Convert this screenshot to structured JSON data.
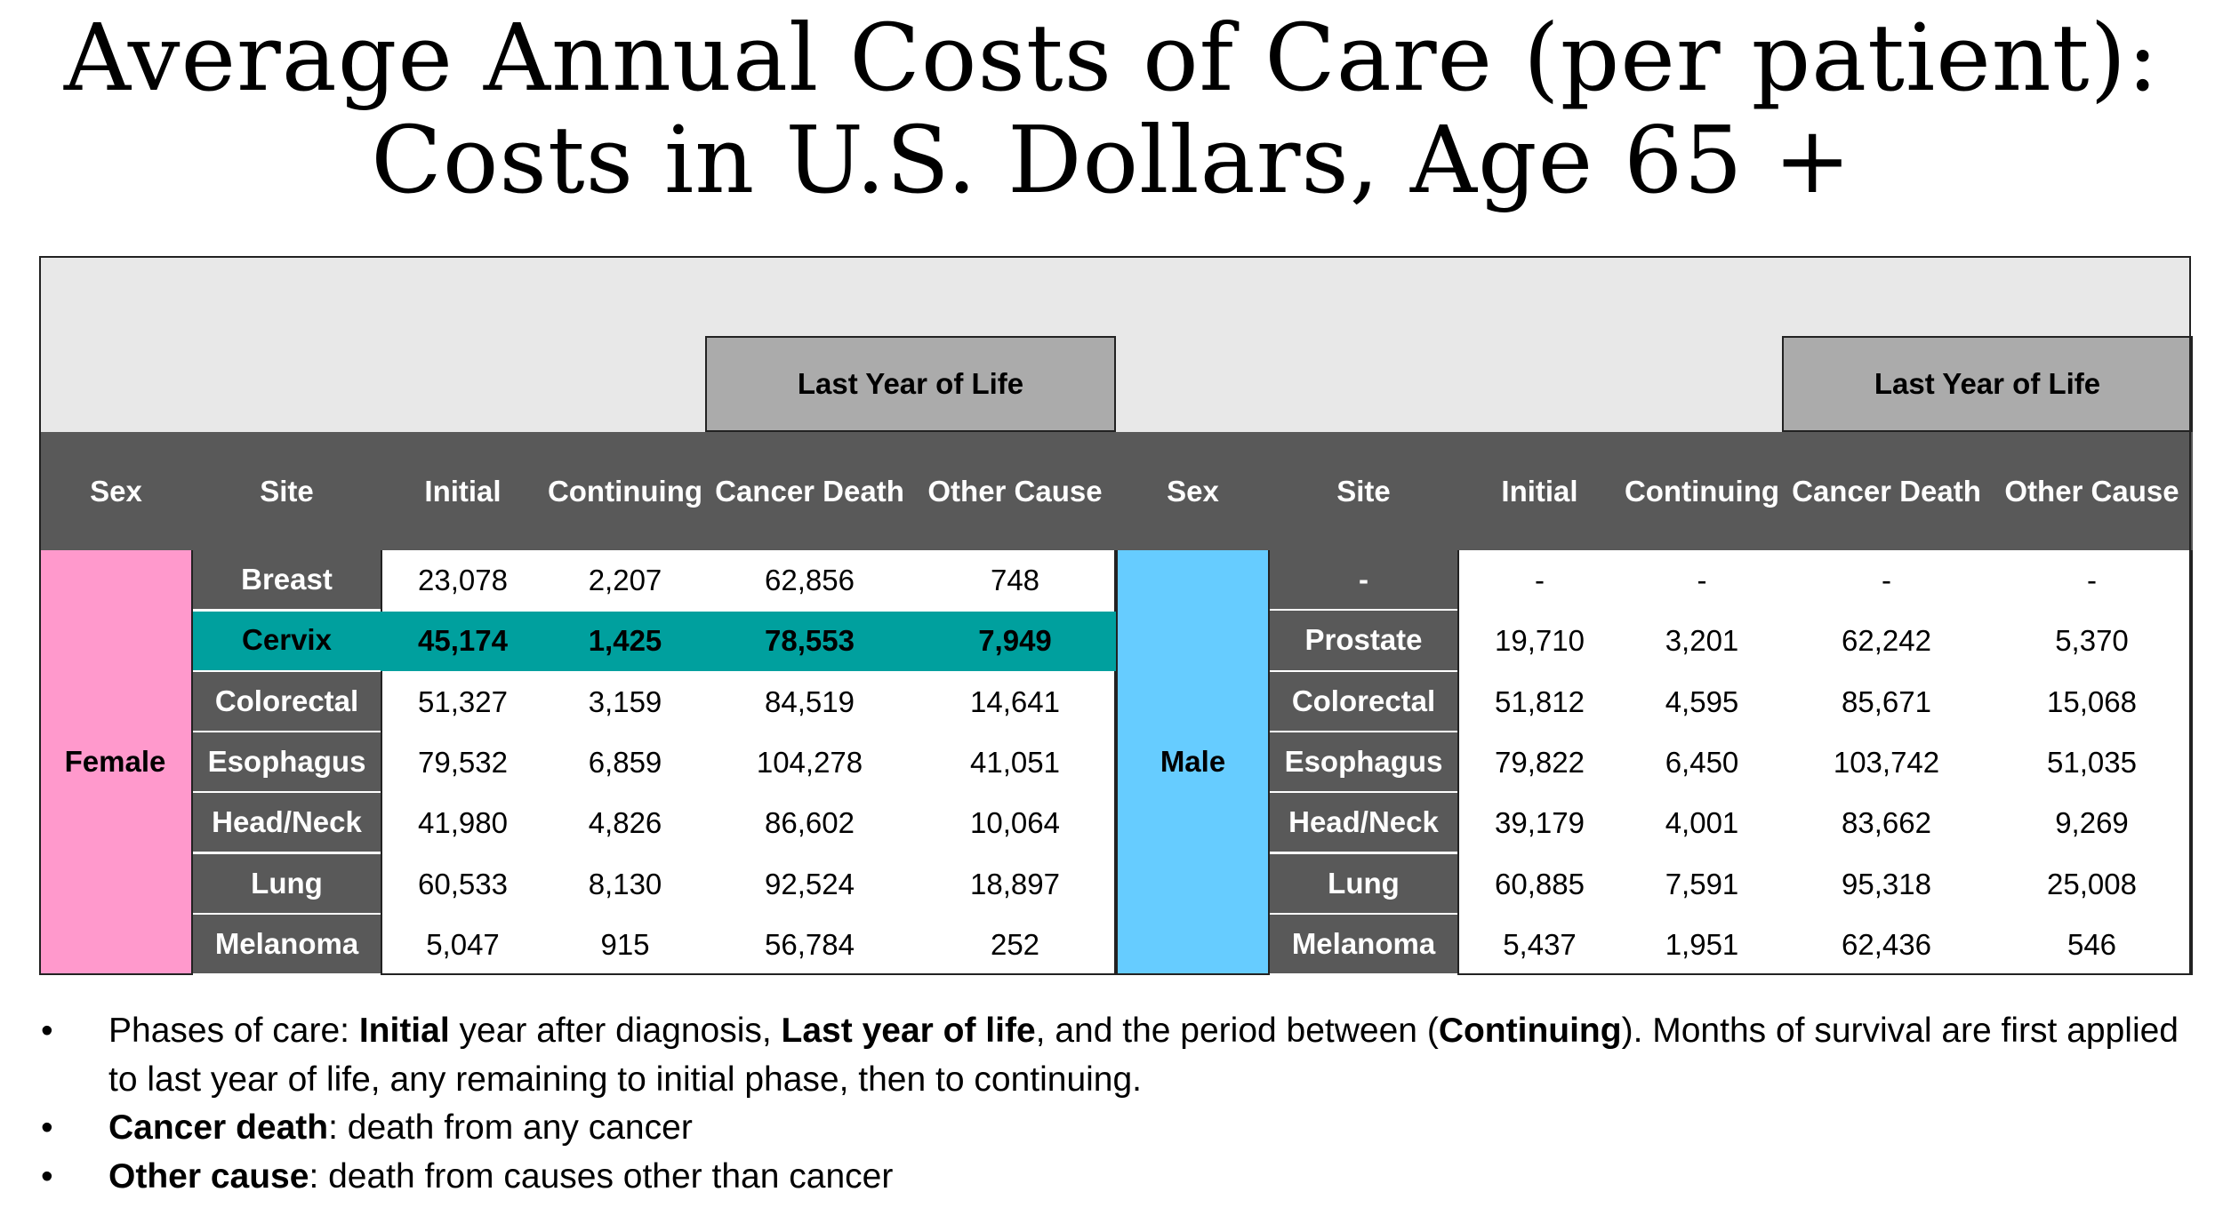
{
  "title_lines": [
    "Average Annual Costs of Care (per patient):",
    "Costs in U.S. Dollars, Age 65 +"
  ],
  "colors": {
    "female_bg": "#ff99cc",
    "male_bg": "#66ccff",
    "header_bg": "#595959",
    "band_bg": "#ababab",
    "top_bg": "#e8e8e8",
    "highlight_bg": "#00a09e"
  },
  "chart_data": {
    "type": "table",
    "band_label": "Last Year of Life",
    "columns": [
      "Sex",
      "Site",
      "Initial",
      "Continuing",
      "Cancer Death",
      "Other Cause"
    ],
    "highlight_row": {
      "group": "Female",
      "site": "Cervix"
    },
    "groups": [
      {
        "sex": "Female",
        "rows": [
          {
            "site": "Breast",
            "initial": "23,078",
            "continuing": "2,207",
            "cancer_death": "62,856",
            "other_cause": "748"
          },
          {
            "site": "Cervix",
            "initial": "45,174",
            "continuing": "1,425",
            "cancer_death": "78,553",
            "other_cause": "7,949"
          },
          {
            "site": "Colorectal",
            "initial": "51,327",
            "continuing": "3,159",
            "cancer_death": "84,519",
            "other_cause": "14,641"
          },
          {
            "site": "Esophagus",
            "initial": "79,532",
            "continuing": "6,859",
            "cancer_death": "104,278",
            "other_cause": "41,051"
          },
          {
            "site": "Head/Neck",
            "initial": "41,980",
            "continuing": "4,826",
            "cancer_death": "86,602",
            "other_cause": "10,064"
          },
          {
            "site": "Lung",
            "initial": "60,533",
            "continuing": "8,130",
            "cancer_death": "92,524",
            "other_cause": "18,897"
          },
          {
            "site": "Melanoma",
            "initial": "5,047",
            "continuing": "915",
            "cancer_death": "56,784",
            "other_cause": "252"
          }
        ]
      },
      {
        "sex": "Male",
        "rows": [
          {
            "site": "-",
            "initial": "-",
            "continuing": "-",
            "cancer_death": "-",
            "other_cause": "-"
          },
          {
            "site": "Prostate",
            "initial": "19,710",
            "continuing": "3,201",
            "cancer_death": "62,242",
            "other_cause": "5,370"
          },
          {
            "site": "Colorectal",
            "initial": "51,812",
            "continuing": "4,595",
            "cancer_death": "85,671",
            "other_cause": "15,068"
          },
          {
            "site": "Esophagus",
            "initial": "79,822",
            "continuing": "6,450",
            "cancer_death": "103,742",
            "other_cause": "51,035"
          },
          {
            "site": "Head/Neck",
            "initial": "39,179",
            "continuing": "4,001",
            "cancer_death": "83,662",
            "other_cause": "9,269"
          },
          {
            "site": "Lung",
            "initial": "60,885",
            "continuing": "7,591",
            "cancer_death": "95,318",
            "other_cause": "25,008"
          },
          {
            "site": "Melanoma",
            "initial": "5,437",
            "continuing": "1,951",
            "cancer_death": "62,436",
            "other_cause": "546"
          }
        ]
      }
    ]
  },
  "notes": [
    [
      {
        "text": "Phases of care:  ",
        "bold": false
      },
      {
        "text": "Initial",
        "bold": true
      },
      {
        "text": " year after diagnosis, ",
        "bold": false
      },
      {
        "text": "Last year of life",
        "bold": true
      },
      {
        "text": ", and the period between (",
        "bold": false
      },
      {
        "text": "Continuing",
        "bold": true
      },
      {
        "text": "). Months of survival are first applied to last year of life, any remaining to initial phase, then to continuing.",
        "bold": false
      }
    ],
    [
      {
        "text": "Cancer death",
        "bold": true
      },
      {
        "text": ": death from any cancer",
        "bold": false
      }
    ],
    [
      {
        "text": "Other cause",
        "bold": true
      },
      {
        "text": ": death from causes other than cancer",
        "bold": false
      }
    ]
  ],
  "bullet_char": "•"
}
